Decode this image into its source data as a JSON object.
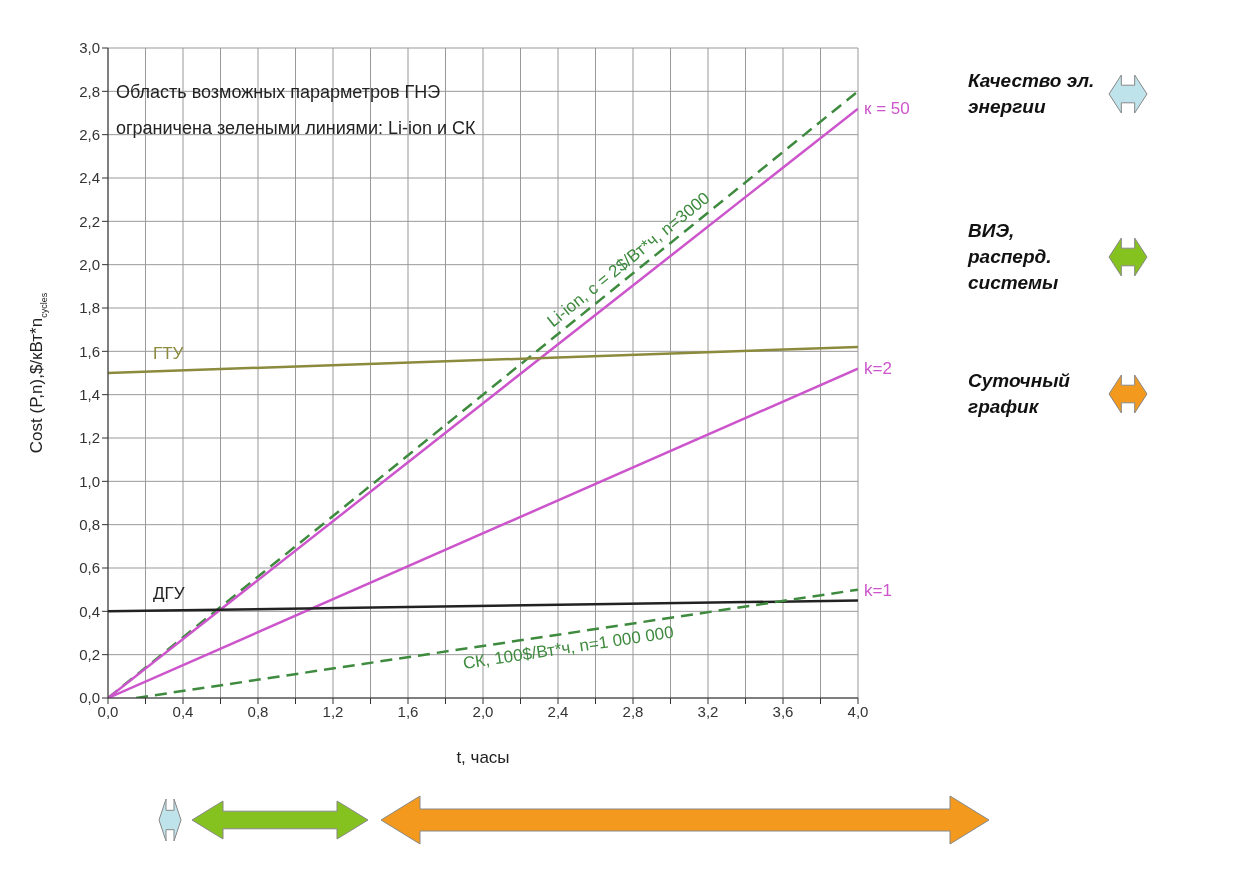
{
  "chart_data": {
    "type": "line",
    "xlabel": "t, часы",
    "ylabel": "Cost (P,n),$/кВт*n$_{cycles}$",
    "xlim": [
      0,
      4
    ],
    "ylim": [
      0,
      3
    ],
    "xticks": [
      {
        "value": 0,
        "label": "0,0"
      },
      {
        "value": 0.2,
        "label": null
      },
      {
        "value": 0.4,
        "label": "0,4"
      },
      {
        "value": 0.6,
        "label": null
      },
      {
        "value": 0.8,
        "label": "0,8"
      },
      {
        "value": 1.0,
        "label": null
      },
      {
        "value": 1.2,
        "label": "1,2"
      },
      {
        "value": 1.4,
        "label": null
      },
      {
        "value": 1.6,
        "label": "1,6"
      },
      {
        "value": 1.8,
        "label": null
      },
      {
        "value": 2.0,
        "label": "2,0"
      },
      {
        "value": 2.2,
        "label": null
      },
      {
        "value": 2.4,
        "label": "2,4"
      },
      {
        "value": 2.6,
        "label": null
      },
      {
        "value": 2.8,
        "label": "2,8"
      },
      {
        "value": 3.0,
        "label": null
      },
      {
        "value": 3.2,
        "label": "3,2"
      },
      {
        "value": 3.4,
        "label": null
      },
      {
        "value": 3.6,
        "label": "3,6"
      },
      {
        "value": 3.8,
        "label": null
      },
      {
        "value": 4.0,
        "label": "4,0"
      }
    ],
    "yticks": [
      {
        "value": 0,
        "label": "0,0"
      },
      {
        "value": 0.2,
        "label": "0,2"
      },
      {
        "value": 0.4,
        "label": "0,4"
      },
      {
        "value": 0.6,
        "label": "0,6"
      },
      {
        "value": 0.8,
        "label": "0,8"
      },
      {
        "value": 1.0,
        "label": "1,0"
      },
      {
        "value": 1.2,
        "label": "1,2"
      },
      {
        "value": 1.4,
        "label": "1,4"
      },
      {
        "value": 1.6,
        "label": "1,6"
      },
      {
        "value": 1.8,
        "label": "1,8"
      },
      {
        "value": 2.0,
        "label": "2,0"
      },
      {
        "value": 2.2,
        "label": "2,2"
      },
      {
        "value": 2.4,
        "label": "2,4"
      },
      {
        "value": 2.6,
        "label": "2,6"
      },
      {
        "value": 2.8,
        "label": "2,8"
      },
      {
        "value": 3.0,
        "label": "3,0"
      }
    ],
    "grid": true,
    "marker": "none",
    "series": [
      {
        "name": "Li-ion, c = 2$/Вт*ч, n=3000",
        "color": "#3e8a3e",
        "line_style": "dashed",
        "x": [
          0,
          4
        ],
        "values": [
          0,
          2.8
        ]
      },
      {
        "name": "к = 50",
        "color": "#cc55cc",
        "line_style": "solid",
        "x": [
          0,
          4
        ],
        "values": [
          0,
          2.72
        ]
      },
      {
        "name": "k=2",
        "color": "#cc55cc",
        "line_style": "solid",
        "x": [
          0,
          4
        ],
        "values": [
          0,
          1.52
        ]
      },
      {
        "name": "ГТУ",
        "color": "#8c8a3c",
        "line_style": "solid",
        "x": [
          0,
          4
        ],
        "values": [
          1.5,
          1.62
        ]
      },
      {
        "name": "ДГУ",
        "color": "#222222",
        "line_style": "solid",
        "x": [
          0,
          4
        ],
        "values": [
          0.4,
          0.45
        ]
      },
      {
        "name": "СК, 100$/Вт*ч, n=1 000 000",
        "color": "#3e8a3e",
        "line_style": "dashed",
        "x": [
          0.15,
          4
        ],
        "values": [
          0,
          0.5
        ]
      }
    ],
    "annotations": [
      "Область возможных парарметров ГНЭ",
      "ограничена зелеными линиями: Li-ion и СК",
      {
        "text": "k=1",
        "x": 4,
        "y": 0.5
      },
      "Качество эл. энергии",
      "ВИЭ, расперд. системы",
      "Суточный график"
    ]
  }
}
